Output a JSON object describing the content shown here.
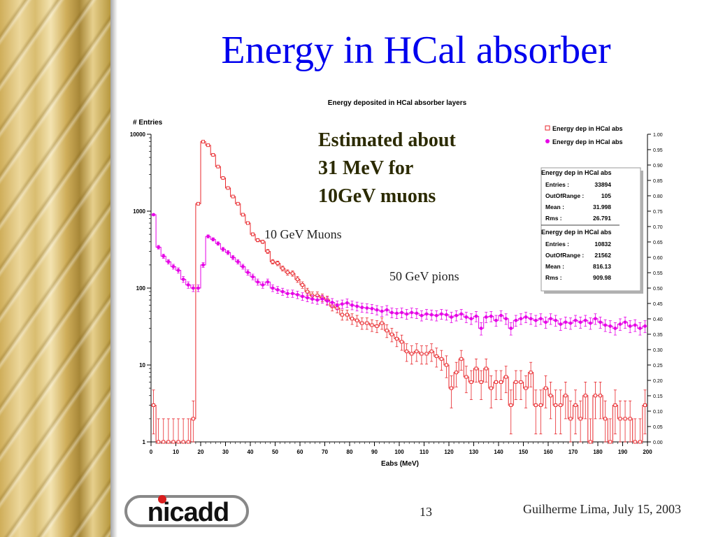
{
  "slide": {
    "title": "Energy in HCal absorber",
    "page_number": "13",
    "footer": "Guilherme Lima, July 15, 2003",
    "logo_text": "nicadd"
  },
  "annotations": {
    "estimate": "Estimated about\n31 MeV for\n10GeV muons",
    "muons": "10 GeV Muons",
    "pions": "50 GeV pions"
  },
  "colors": {
    "title": "#0000ee",
    "muon_series": "#e8262b",
    "pion_series": "#e600e6"
  },
  "chart_data": {
    "type": "line",
    "title": "Energy deposited in HCal absorber layers",
    "xlabel": "Eabs (MeV)",
    "ylabel": "# Entries",
    "xlim": [
      0,
      200
    ],
    "ylim": [
      1,
      10000
    ],
    "yscale": "log",
    "grid": false,
    "x_ticks": [
      "0",
      "10",
      "20",
      "30",
      "40",
      "50",
      "60",
      "70",
      "80",
      "90",
      "100",
      "110",
      "120",
      "130",
      "140",
      "150",
      "160",
      "170",
      "180",
      "190",
      "200"
    ],
    "y_ticks": [
      "1",
      "10",
      "100",
      "1000",
      "10000"
    ],
    "y2_ticks": [
      "0.00",
      "0.05",
      "0.10",
      "0.15",
      "0.20",
      "0.25",
      "0.30",
      "0.35",
      "0.40",
      "0.45",
      "0.50",
      "0.55",
      "0.60",
      "0.65",
      "0.70",
      "0.75",
      "0.80",
      "0.85",
      "0.90",
      "0.95",
      "1.00"
    ],
    "legend": {
      "position": "top-right",
      "entries": [
        {
          "label": "Energy dep in HCal abs",
          "marker": "open-square",
          "color": "#e8262b"
        },
        {
          "label": "Energy dep in HCal abs",
          "marker": "star",
          "color": "#e600e6"
        }
      ]
    },
    "stats": [
      {
        "title": "Energy dep in HCal abs",
        "rows": [
          [
            "Entries :",
            "33894"
          ],
          [
            "OutOfRange :",
            "105"
          ],
          [
            "Mean :",
            "31.998"
          ],
          [
            "Rms :",
            "26.791"
          ]
        ]
      },
      {
        "title": "Energy dep in HCal abs",
        "rows": [
          [
            "Entries :",
            "10832"
          ],
          [
            "OutOfRange :",
            "21562"
          ],
          [
            "Mean :",
            "816.13"
          ],
          [
            "Rms :",
            "909.98"
          ]
        ]
      }
    ],
    "series": [
      {
        "color": "#e8262b",
        "marker": "open-square",
        "x": [
          1,
          3,
          5,
          7,
          9,
          11,
          13,
          15,
          17,
          19,
          21,
          23,
          25,
          27,
          29,
          31,
          33,
          35,
          37,
          39,
          41,
          43,
          45,
          47,
          49,
          51,
          53,
          55,
          57,
          59,
          61,
          63,
          65,
          67,
          69,
          71,
          73,
          75,
          77,
          79,
          81,
          83,
          85,
          87,
          89,
          91,
          93,
          95,
          97,
          99,
          101,
          103,
          105,
          107,
          109,
          111,
          113,
          115,
          117,
          119,
          121,
          123,
          125,
          127,
          129,
          131,
          133,
          135,
          137,
          139,
          141,
          143,
          145,
          147,
          149,
          151,
          153,
          155,
          157,
          159,
          161,
          163,
          165,
          167,
          169,
          171,
          173,
          175,
          177,
          179,
          181,
          183,
          185,
          187,
          189,
          191,
          193,
          195,
          197,
          199
        ],
        "values": [
          3,
          1,
          1,
          1,
          1,
          1,
          1,
          1,
          2,
          1250,
          8000,
          7200,
          5400,
          3800,
          2700,
          2000,
          1550,
          1250,
          900,
          700,
          500,
          420,
          400,
          300,
          220,
          210,
          180,
          160,
          155,
          130,
          110,
          90,
          80,
          80,
          75,
          70,
          58,
          55,
          45,
          45,
          40,
          38,
          35,
          35,
          33,
          32,
          35,
          28,
          25,
          22,
          20,
          15,
          14,
          15,
          14,
          14,
          15,
          13,
          12,
          10,
          5,
          8,
          12,
          7,
          6,
          9,
          6,
          9,
          5,
          6,
          6,
          7,
          3,
          6,
          6,
          5,
          8,
          3,
          3,
          5,
          4,
          3,
          3,
          4,
          2,
          3,
          2,
          4,
          1,
          4,
          4,
          2,
          1,
          3,
          2,
          2,
          2,
          1,
          1,
          3
        ]
      },
      {
        "color": "#e600e6",
        "marker": "star",
        "x": [
          1,
          3,
          5,
          7,
          9,
          11,
          13,
          15,
          17,
          19,
          21,
          23,
          25,
          27,
          29,
          31,
          33,
          35,
          37,
          39,
          41,
          43,
          45,
          47,
          49,
          51,
          53,
          55,
          57,
          59,
          61,
          63,
          65,
          67,
          69,
          71,
          73,
          75,
          77,
          79,
          81,
          83,
          85,
          87,
          89,
          91,
          93,
          95,
          97,
          99,
          101,
          103,
          105,
          107,
          109,
          111,
          113,
          115,
          117,
          119,
          121,
          123,
          125,
          127,
          129,
          131,
          133,
          135,
          137,
          139,
          141,
          143,
          145,
          147,
          149,
          151,
          153,
          155,
          157,
          159,
          161,
          163,
          165,
          167,
          169,
          171,
          173,
          175,
          177,
          179,
          181,
          183,
          185,
          187,
          189,
          191,
          193,
          195,
          197,
          199
        ],
        "values": [
          900,
          340,
          260,
          220,
          190,
          170,
          130,
          110,
          100,
          100,
          200,
          470,
          430,
          380,
          320,
          290,
          250,
          220,
          190,
          160,
          140,
          120,
          110,
          120,
          100,
          95,
          90,
          85,
          85,
          82,
          78,
          75,
          72,
          70,
          72,
          68,
          65,
          60,
          62,
          64,
          60,
          58,
          56,
          55,
          54,
          52,
          50,
          52,
          48,
          47,
          48,
          46,
          48,
          47,
          44,
          46,
          45,
          44,
          46,
          45,
          42,
          44,
          46,
          42,
          40,
          43,
          30,
          42,
          43,
          38,
          44,
          40,
          30,
          38,
          40,
          42,
          40,
          38,
          40,
          36,
          40,
          38,
          34,
          36,
          35,
          38,
          36,
          38,
          35,
          40,
          36,
          33,
          32,
          30,
          34,
          36,
          32,
          33,
          30,
          32
        ]
      }
    ]
  }
}
